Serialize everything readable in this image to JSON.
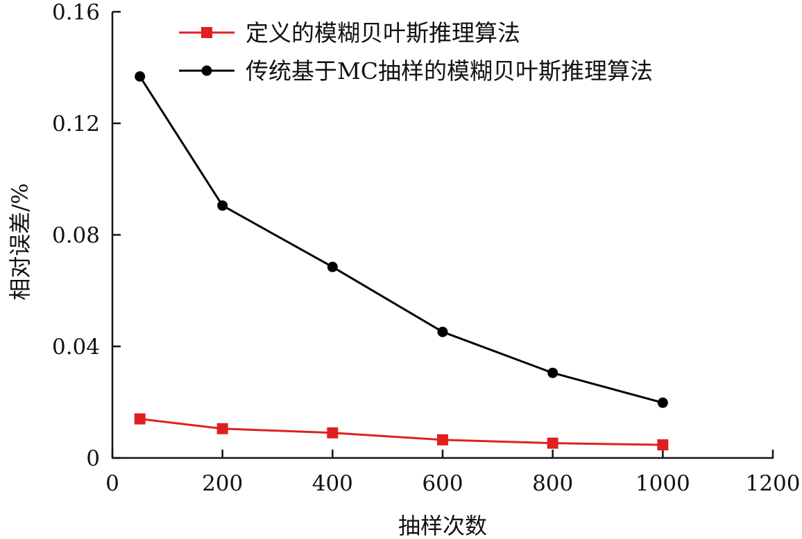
{
  "chart_data": {
    "type": "line",
    "title": "",
    "xlabel": "抽样次数",
    "ylabel": "相对误差/%",
    "xlim": [
      0,
      1200
    ],
    "ylim": [
      0,
      0.16
    ],
    "xticks": [
      0,
      200,
      400,
      600,
      800,
      1000,
      1200
    ],
    "xtick_labels": [
      "0",
      "200",
      "400",
      "600",
      "800",
      "1000",
      "1200"
    ],
    "yticks": [
      0,
      0.04,
      0.08,
      0.12,
      0.16
    ],
    "ytick_labels": [
      "0",
      "0.04",
      "0.08",
      "0.12",
      "0.16"
    ],
    "grid": false,
    "legend_position": "top-right",
    "series": [
      {
        "name": "定义的模糊贝叶斯推理算法",
        "color": "#e02020",
        "marker": "square",
        "x": [
          50,
          200,
          400,
          600,
          800,
          1000
        ],
        "y": [
          0.014,
          0.0105,
          0.009,
          0.0065,
          0.0053,
          0.0047
        ]
      },
      {
        "name": "传统基于MC抽样的模糊贝叶斯推理算法",
        "color": "#000000",
        "marker": "circle",
        "x": [
          50,
          200,
          400,
          600,
          800,
          1000
        ],
        "y": [
          0.1368,
          0.0905,
          0.0685,
          0.0452,
          0.0305,
          0.0198
        ]
      }
    ]
  }
}
